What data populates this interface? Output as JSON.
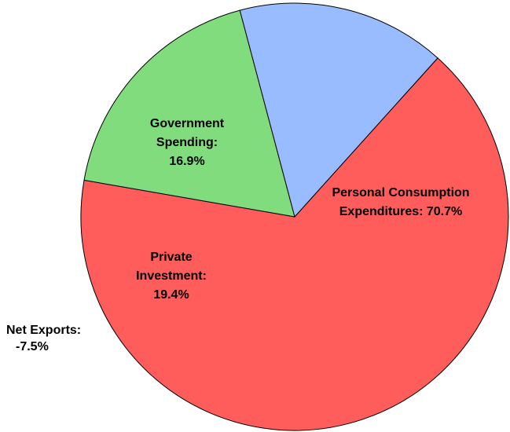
{
  "chart_data": {
    "type": "pie",
    "title": "",
    "start_angle_deg": 42,
    "slices": [
      {
        "name": "Personal Consumption Expenditures",
        "value": 70.7,
        "display": "70.7%",
        "label_lines": [
          "Personal Consumption",
          "Expenditures: 70.7%"
        ],
        "color": "#ff5c5c"
      },
      {
        "name": "Private Investment",
        "value": 19.4,
        "display": "19.4%",
        "label_lines": [
          "Private",
          "Investment:",
          "19.4%"
        ],
        "color": "#80dc7c"
      },
      {
        "name": "Government Spending",
        "value": 16.9,
        "display": "16.9%",
        "label_lines": [
          "Government",
          "Spending:",
          "16.9%"
        ],
        "color": "#99bbff"
      }
    ],
    "outside_labels": [
      {
        "name": "Net Exports",
        "value": -7.5,
        "display": "-7.5%",
        "label_lines": [
          "Net Exports:",
          "-7.5%"
        ]
      }
    ]
  }
}
